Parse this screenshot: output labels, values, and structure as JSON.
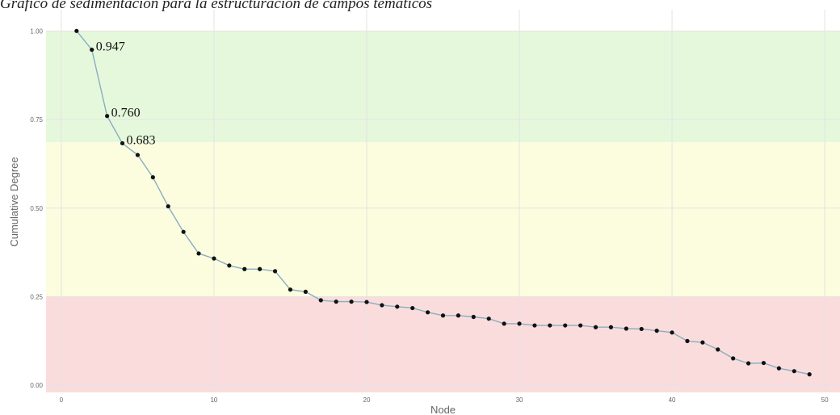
{
  "caption": "Gráfico de sedimentación para la estructuración de campos temáticos",
  "colors": {
    "band_high": "#e6f8dc",
    "band_mid": "#fcfcdf",
    "band_low": "#fbdcdc",
    "line": "#88aec0",
    "point": "#111111",
    "grid": "#e3e3e3"
  },
  "chart_data": {
    "type": "line",
    "title": "",
    "xlabel": "Node",
    "ylabel": "Cumulative Degree",
    "xlim": [
      -1,
      51
    ],
    "ylim": [
      -0.02,
      1.06
    ],
    "x_ticks": [
      0,
      10,
      20,
      30,
      40,
      50
    ],
    "y_ticks": [
      0.0,
      0.25,
      0.5,
      0.75,
      1.0
    ],
    "y_tick_labels": [
      "0.00",
      "0.25",
      "0.50",
      "0.75",
      "1.00"
    ],
    "grid": true,
    "bands": [
      {
        "from": 0.686,
        "to": 1.0,
        "color": "high"
      },
      {
        "from": 0.25,
        "to": 0.686,
        "color": "mid"
      },
      {
        "from": -0.02,
        "to": 0.25,
        "color": "low"
      }
    ],
    "series": [
      {
        "x": [
          1,
          2,
          3,
          4,
          5,
          6,
          7,
          8,
          9,
          10,
          11,
          12,
          13,
          14,
          15,
          16,
          17,
          18,
          19,
          20,
          21,
          22,
          23,
          24,
          25,
          26,
          27,
          28,
          29,
          30,
          31,
          32,
          33,
          34,
          35,
          36,
          37,
          38,
          39,
          40,
          41,
          42,
          43,
          44,
          45,
          46,
          47,
          48,
          49
        ],
        "values": [
          1.0,
          0.947,
          0.76,
          0.683,
          0.65,
          0.587,
          0.505,
          0.433,
          0.372,
          0.358,
          0.338,
          0.328,
          0.328,
          0.322,
          0.27,
          0.264,
          0.24,
          0.236,
          0.236,
          0.235,
          0.226,
          0.222,
          0.218,
          0.206,
          0.197,
          0.197,
          0.193,
          0.188,
          0.174,
          0.174,
          0.169,
          0.169,
          0.169,
          0.169,
          0.164,
          0.164,
          0.16,
          0.159,
          0.154,
          0.149,
          0.125,
          0.121,
          0.101,
          0.076,
          0.062,
          0.063,
          0.048,
          0.04,
          0.031
        ]
      }
    ],
    "annotations": [
      {
        "x": 2,
        "y": 0.947,
        "label": "0.947"
      },
      {
        "x": 3,
        "y": 0.76,
        "label": "0.760"
      },
      {
        "x": 4,
        "y": 0.683,
        "label": "0.683"
      }
    ]
  }
}
